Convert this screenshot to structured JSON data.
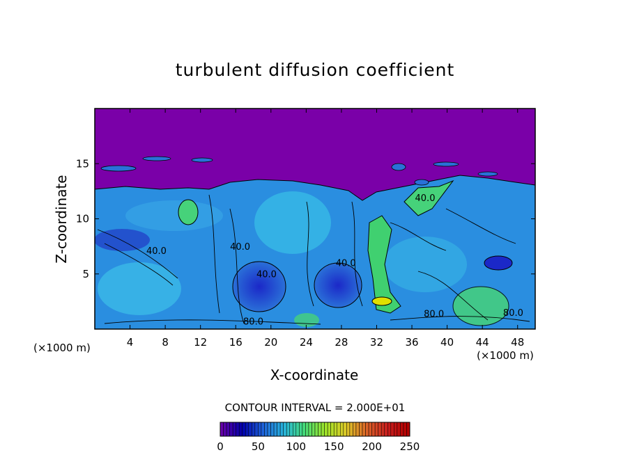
{
  "chart_data": {
    "type": "heatmap",
    "title": "turbulent diffusion coefficient",
    "xlabel": "X-coordinate",
    "ylabel": "Z-coordinate",
    "x_unit_label": "(×1000 m)",
    "x_ticks": [
      4,
      8,
      12,
      16,
      20,
      24,
      28,
      32,
      36,
      40,
      44,
      48
    ],
    "y_ticks": [
      5,
      10,
      15
    ],
    "xlim": [
      0,
      50
    ],
    "ylim": [
      0,
      20
    ],
    "contour_interval_text": "CONTOUR INTERVAL = 2.000E+01",
    "contour_labels": [
      {
        "text": "40.0",
        "x": 7,
        "y": 6.8
      },
      {
        "text": "40.0",
        "x": 16.5,
        "y": 7.2
      },
      {
        "text": "40.0",
        "x": 19.5,
        "y": 4.7
      },
      {
        "text": "40.0",
        "x": 28.5,
        "y": 5.7
      },
      {
        "text": "40.0",
        "x": 37.5,
        "y": 11.6
      },
      {
        "text": "80.0",
        "x": 18,
        "y": 0.4
      },
      {
        "text": "80.0",
        "x": 38.5,
        "y": 1.1
      },
      {
        "text": "80.0",
        "x": 47.5,
        "y": 1.2
      }
    ],
    "colorbar": {
      "ticks": [
        0,
        50,
        100,
        150,
        200,
        250
      ],
      "min": 0,
      "max": 250,
      "colors": [
        "#6600aa",
        "#0000aa",
        "#1e64dc",
        "#28b4dc",
        "#46dc78",
        "#a0e628",
        "#dcc828",
        "#dc6428",
        "#c81e1e",
        "#b40000"
      ]
    },
    "colors": {
      "background_top": "#7a00a8",
      "low": "#1b28c8",
      "mid": "#2a8ee0",
      "light": "#3cc8e8",
      "green": "#40d070",
      "yellow": "#e0e000"
    }
  }
}
